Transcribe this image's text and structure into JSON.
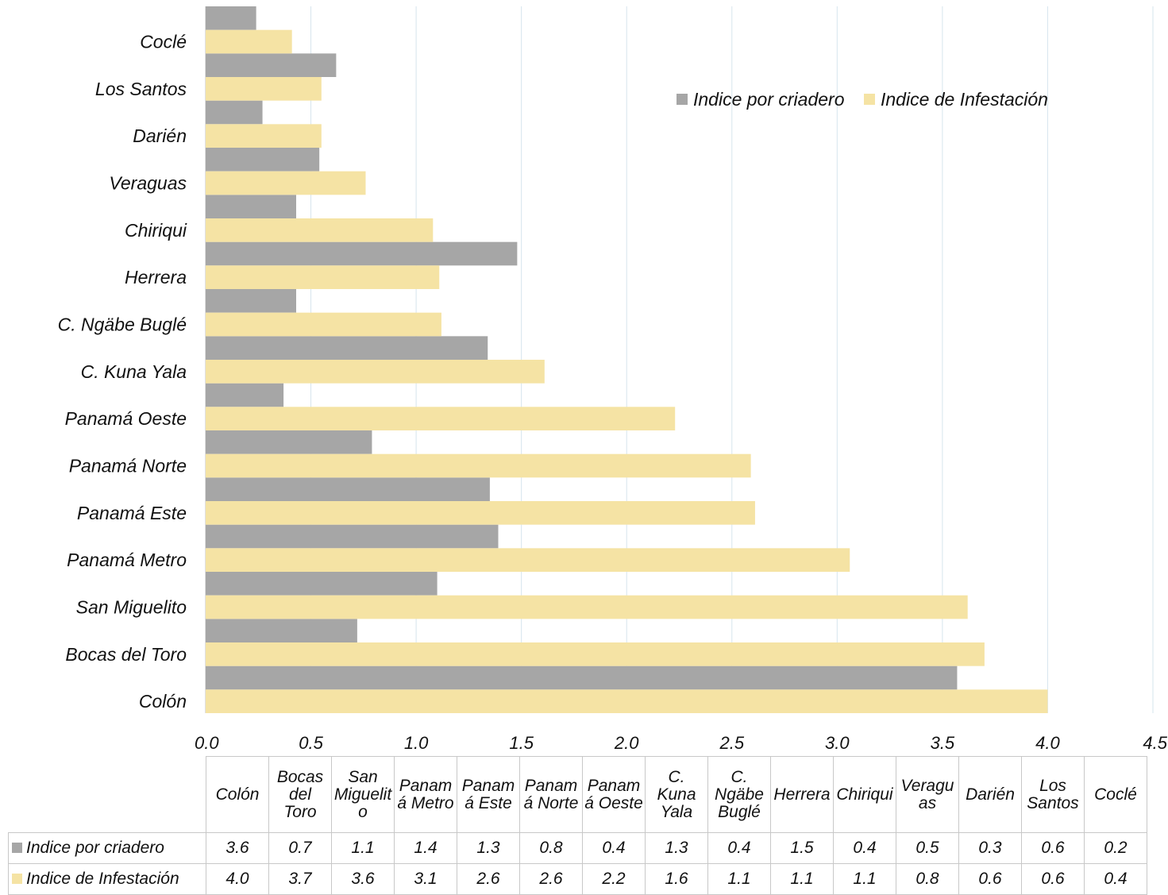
{
  "chart_data": {
    "type": "bar",
    "orientation": "horizontal",
    "categories": [
      "Colón",
      "Bocas del Toro",
      "San Miguelito",
      "Panamá Metro",
      "Panamá Este",
      "Panamá Norte",
      "Panamá Oeste",
      "C. Kuna Yala",
      "C. Ngäbe Buglé",
      "Herrera",
      "Chiriqui",
      "Veraguas",
      "Darién",
      "Los Santos",
      "Coclé"
    ],
    "table_headers": [
      "Colón",
      "Bocas del Toro",
      "San Miguelito",
      "Panamá Metro",
      "Panamá Este",
      "Panamá Norte",
      "Panamá Oeste",
      "C. Kuna Yala",
      "C. Ngäbe Buglé",
      "Herrera",
      "Chiriqui",
      "Veraguas",
      "Darién",
      "Los Santos",
      "Coclé"
    ],
    "series": [
      {
        "name": "Indice por criadero",
        "color": "#a6a6a6",
        "values": [
          3.57,
          0.72,
          1.1,
          1.39,
          1.35,
          0.79,
          0.37,
          1.34,
          0.43,
          1.48,
          0.43,
          0.54,
          0.27,
          0.62,
          0.24
        ],
        "labels": [
          "3.6",
          "0.7",
          "1.1",
          "1.4",
          "1.3",
          "0.8",
          "0.4",
          "1.3",
          "0.4",
          "1.5",
          "0.4",
          "0.5",
          "0.3",
          "0.6",
          "0.2"
        ]
      },
      {
        "name": "Indice de Infestación",
        "color": "#f5e3a4",
        "values": [
          4.0,
          3.7,
          3.62,
          3.06,
          2.61,
          2.59,
          2.23,
          1.61,
          1.12,
          1.11,
          1.08,
          0.76,
          0.55,
          0.55,
          0.41
        ],
        "labels": [
          "4.0",
          "3.7",
          "3.6",
          "3.1",
          "2.6",
          "2.6",
          "2.2",
          "1.6",
          "1.1",
          "1.1",
          "1.1",
          "0.8",
          "0.6",
          "0.6",
          "0.4"
        ]
      }
    ],
    "xlim": [
      0,
      4.5
    ],
    "xticks": [
      "0.0",
      "0.5",
      "1.0",
      "1.5",
      "2.0",
      "2.5",
      "3.0",
      "3.5",
      "4.0",
      "4.5"
    ],
    "grid": true,
    "legend_position": "top-right",
    "title": "",
    "xlabel": "",
    "ylabel": ""
  }
}
